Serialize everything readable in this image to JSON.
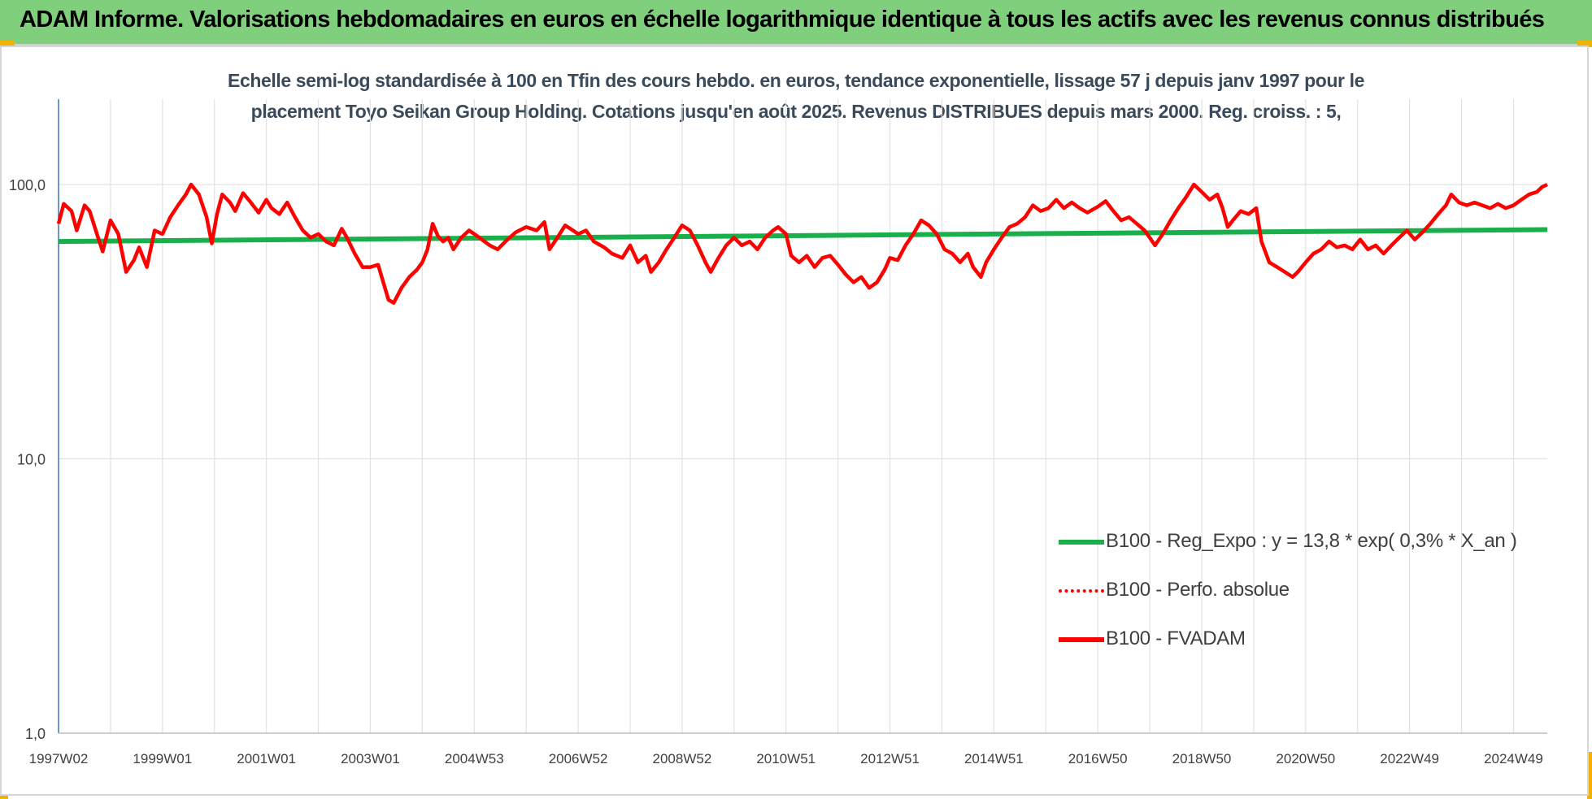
{
  "banner": {
    "title": "ADAM Informe. Valorisations hebdomadaires en euros en échelle logarithmique identique à tous les actifs avec les revenus connus distribués"
  },
  "chart_data": {
    "type": "line",
    "title_lines": [
      "Echelle semi-log standardisée à 100 en Tfin des cours hebdo. en euros, tendance exponentielle, lissage 57 j depuis janv 1997 pour le",
      "placement Toyo Seikan Group Holding. Cotations jusqu'en août 2025. Revenus DISTRIBUES depuis mars 2000. Reg. croiss. : 5,"
    ],
    "y_scale": "log",
    "ylim": [
      1,
      200
    ],
    "y_ticks": [
      {
        "value": 1,
        "label": "1,0"
      },
      {
        "value": 10,
        "label": "10,0"
      },
      {
        "value": 100,
        "label": "100,0"
      }
    ],
    "x_range": [
      1997.0,
      2025.65
    ],
    "x_ticks": [
      {
        "year": 1997.0,
        "label": "1997W02"
      },
      {
        "year": 1999.0,
        "label": "1999W01"
      },
      {
        "year": 2001.0,
        "label": "2001W01"
      },
      {
        "year": 2003.0,
        "label": "2003W01"
      },
      {
        "year": 2005.0,
        "label": "2004W53"
      },
      {
        "year": 2007.0,
        "label": "2006W52"
      },
      {
        "year": 2009.0,
        "label": "2008W52"
      },
      {
        "year": 2011.0,
        "label": "2010W51"
      },
      {
        "year": 2013.0,
        "label": "2012W51"
      },
      {
        "year": 2015.0,
        "label": "2014W51"
      },
      {
        "year": 2017.0,
        "label": "2016W50"
      },
      {
        "year": 2019.0,
        "label": "2018W50"
      },
      {
        "year": 2021.0,
        "label": "2020W50"
      },
      {
        "year": 2023.0,
        "label": "2022W49"
      },
      {
        "year": 2025.0,
        "label": "2024W49"
      }
    ],
    "grid": true,
    "legend_position": "bottom-right",
    "series": [
      {
        "name": "B100 - Reg_Expo : y = 13,8 * exp( 0,3% *  X_an )",
        "color": "#19b04b",
        "style": "solid",
        "points": [
          [
            1997.0,
            62
          ],
          [
            2025.65,
            68.5
          ]
        ]
      },
      {
        "name": "B100 - Perfo. absolue",
        "color": "#ff0000",
        "style": "dotted",
        "points": []
      },
      {
        "name": "B100 - FVADAM",
        "color": "#ff0000",
        "style": "solid",
        "points": [
          [
            1997.0,
            72
          ],
          [
            1997.1,
            85
          ],
          [
            1997.25,
            80
          ],
          [
            1997.35,
            68
          ],
          [
            1997.5,
            84
          ],
          [
            1997.6,
            80
          ],
          [
            1997.75,
            65
          ],
          [
            1997.85,
            57
          ],
          [
            1998.0,
            74
          ],
          [
            1998.15,
            66
          ],
          [
            1998.3,
            48
          ],
          [
            1998.45,
            53
          ],
          [
            1998.55,
            59
          ],
          [
            1998.7,
            50
          ],
          [
            1998.85,
            68
          ],
          [
            1999.0,
            66
          ],
          [
            1999.15,
            76
          ],
          [
            1999.3,
            84
          ],
          [
            1999.45,
            92
          ],
          [
            1999.55,
            100
          ],
          [
            1999.7,
            92
          ],
          [
            1999.85,
            76
          ],
          [
            1999.95,
            61
          ],
          [
            2000.05,
            78
          ],
          [
            2000.15,
            92
          ],
          [
            2000.3,
            86
          ],
          [
            2000.4,
            80
          ],
          [
            2000.55,
            93
          ],
          [
            2000.7,
            86
          ],
          [
            2000.85,
            79
          ],
          [
            2001.0,
            88
          ],
          [
            2001.1,
            82
          ],
          [
            2001.25,
            78
          ],
          [
            2001.4,
            86
          ],
          [
            2001.55,
            76
          ],
          [
            2001.7,
            68
          ],
          [
            2001.85,
            64
          ],
          [
            2002.0,
            66
          ],
          [
            2002.15,
            62
          ],
          [
            2002.3,
            60
          ],
          [
            2002.45,
            69
          ],
          [
            2002.55,
            64
          ],
          [
            2002.7,
            56
          ],
          [
            2002.85,
            50
          ],
          [
            2003.0,
            50
          ],
          [
            2003.15,
            51
          ],
          [
            2003.25,
            44
          ],
          [
            2003.35,
            38
          ],
          [
            2003.45,
            37
          ],
          [
            2003.6,
            42
          ],
          [
            2003.75,
            46
          ],
          [
            2003.9,
            49
          ],
          [
            2004.0,
            52
          ],
          [
            2004.1,
            58
          ],
          [
            2004.2,
            72
          ],
          [
            2004.3,
            65
          ],
          [
            2004.4,
            62
          ],
          [
            2004.5,
            64
          ],
          [
            2004.6,
            58
          ],
          [
            2004.75,
            64
          ],
          [
            2004.9,
            68
          ],
          [
            2005.1,
            64
          ],
          [
            2005.3,
            60
          ],
          [
            2005.45,
            58
          ],
          [
            2005.6,
            62
          ],
          [
            2005.8,
            67
          ],
          [
            2006.0,
            70
          ],
          [
            2006.2,
            68
          ],
          [
            2006.35,
            73
          ],
          [
            2006.45,
            58
          ],
          [
            2006.6,
            64
          ],
          [
            2006.75,
            71
          ],
          [
            2006.9,
            68
          ],
          [
            2007.0,
            66
          ],
          [
            2007.15,
            68
          ],
          [
            2007.3,
            62
          ],
          [
            2007.5,
            59
          ],
          [
            2007.65,
            56
          ],
          [
            2007.85,
            54
          ],
          [
            2008.0,
            60
          ],
          [
            2008.15,
            52
          ],
          [
            2008.3,
            55
          ],
          [
            2008.4,
            48
          ],
          [
            2008.55,
            52
          ],
          [
            2008.7,
            58
          ],
          [
            2008.85,
            64
          ],
          [
            2009.0,
            71
          ],
          [
            2009.15,
            68
          ],
          [
            2009.3,
            60
          ],
          [
            2009.45,
            52
          ],
          [
            2009.55,
            48
          ],
          [
            2009.7,
            54
          ],
          [
            2009.85,
            60
          ],
          [
            2010.0,
            64
          ],
          [
            2010.15,
            60
          ],
          [
            2010.3,
            62
          ],
          [
            2010.45,
            58
          ],
          [
            2010.6,
            64
          ],
          [
            2010.75,
            68
          ],
          [
            2010.85,
            70
          ],
          [
            2011.0,
            66
          ],
          [
            2011.1,
            55
          ],
          [
            2011.25,
            52
          ],
          [
            2011.4,
            55
          ],
          [
            2011.55,
            50
          ],
          [
            2011.7,
            54
          ],
          [
            2011.85,
            55
          ],
          [
            2012.0,
            51
          ],
          [
            2012.15,
            47
          ],
          [
            2012.3,
            44
          ],
          [
            2012.45,
            46
          ],
          [
            2012.6,
            42
          ],
          [
            2012.75,
            44
          ],
          [
            2012.9,
            49
          ],
          [
            2013.0,
            54
          ],
          [
            2013.15,
            53
          ],
          [
            2013.3,
            60
          ],
          [
            2013.45,
            66
          ],
          [
            2013.6,
            74
          ],
          [
            2013.75,
            71
          ],
          [
            2013.9,
            66
          ],
          [
            2014.05,
            58
          ],
          [
            2014.2,
            56
          ],
          [
            2014.35,
            52
          ],
          [
            2014.5,
            56
          ],
          [
            2014.6,
            50
          ],
          [
            2014.75,
            46
          ],
          [
            2014.85,
            52
          ],
          [
            2015.0,
            58
          ],
          [
            2015.15,
            64
          ],
          [
            2015.3,
            70
          ],
          [
            2015.45,
            72
          ],
          [
            2015.6,
            76
          ],
          [
            2015.75,
            84
          ],
          [
            2015.9,
            80
          ],
          [
            2016.05,
            82
          ],
          [
            2016.2,
            88
          ],
          [
            2016.35,
            82
          ],
          [
            2016.5,
            86
          ],
          [
            2016.65,
            82
          ],
          [
            2016.8,
            79
          ],
          [
            2017.0,
            83
          ],
          [
            2017.15,
            87
          ],
          [
            2017.3,
            80
          ],
          [
            2017.45,
            74
          ],
          [
            2017.6,
            76
          ],
          [
            2017.75,
            72
          ],
          [
            2017.9,
            68
          ],
          [
            2018.0,
            64
          ],
          [
            2018.1,
            60
          ],
          [
            2018.25,
            66
          ],
          [
            2018.4,
            74
          ],
          [
            2018.55,
            82
          ],
          [
            2018.7,
            90
          ],
          [
            2018.85,
            100
          ],
          [
            2019.0,
            94
          ],
          [
            2019.15,
            88
          ],
          [
            2019.3,
            92
          ],
          [
            2019.4,
            82
          ],
          [
            2019.5,
            70
          ],
          [
            2019.6,
            74
          ],
          [
            2019.75,
            80
          ],
          [
            2019.9,
            78
          ],
          [
            2020.05,
            82
          ],
          [
            2020.15,
            62
          ],
          [
            2020.3,
            52
          ],
          [
            2020.45,
            50
          ],
          [
            2020.6,
            48
          ],
          [
            2020.75,
            46
          ],
          [
            2020.85,
            48
          ],
          [
            2021.0,
            52
          ],
          [
            2021.15,
            56
          ],
          [
            2021.3,
            58
          ],
          [
            2021.45,
            62
          ],
          [
            2021.6,
            59
          ],
          [
            2021.75,
            60
          ],
          [
            2021.9,
            58
          ],
          [
            2022.05,
            63
          ],
          [
            2022.2,
            58
          ],
          [
            2022.35,
            60
          ],
          [
            2022.5,
            56
          ],
          [
            2022.65,
            60
          ],
          [
            2022.8,
            64
          ],
          [
            2022.95,
            68
          ],
          [
            2023.1,
            63
          ],
          [
            2023.25,
            67
          ],
          [
            2023.4,
            72
          ],
          [
            2023.55,
            78
          ],
          [
            2023.7,
            84
          ],
          [
            2023.8,
            92
          ],
          [
            2023.95,
            86
          ],
          [
            2024.1,
            84
          ],
          [
            2024.25,
            86
          ],
          [
            2024.4,
            84
          ],
          [
            2024.55,
            82
          ],
          [
            2024.7,
            85
          ],
          [
            2024.85,
            82
          ],
          [
            2025.0,
            84
          ],
          [
            2025.15,
            88
          ],
          [
            2025.3,
            92
          ],
          [
            2025.45,
            94
          ],
          [
            2025.55,
            98
          ],
          [
            2025.65,
            100
          ]
        ]
      }
    ]
  }
}
